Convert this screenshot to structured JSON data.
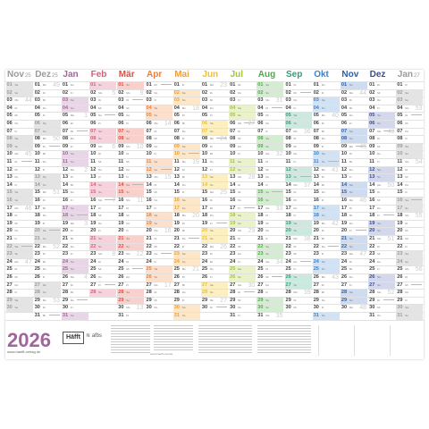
{
  "calendar": {
    "year_title": "2026",
    "brand": "Häfft",
    "brand_secondary": "≋ afbs",
    "website": "www.haefft-verlag.de",
    "website_small": "www.haefft.com/de",
    "weekdays": [
      "Mo",
      "Di",
      "Mi",
      "Do",
      "Fr",
      "Sa",
      "So"
    ],
    "months": [
      {
        "label": "Nov",
        "year": "25",
        "days": 30,
        "start": 5,
        "color": "#9b9b9b",
        "shade": "#e4e4e4",
        "kw": 44
      },
      {
        "label": "Dez",
        "year": "25",
        "days": 31,
        "start": 0,
        "color": "#9b9b9b",
        "shade": "#e4e4e4",
        "kw": 49
      },
      {
        "label": "Jan",
        "year": "",
        "days": 31,
        "start": 3,
        "color": "#a0669c",
        "shade": "#e8d6e6",
        "kw": 1
      },
      {
        "label": "Feb",
        "year": "",
        "days": 28,
        "start": 6,
        "color": "#d4607a",
        "shade": "#f6d3dc",
        "kw": 5
      },
      {
        "label": "Mär",
        "year": "",
        "days": 31,
        "start": 6,
        "color": "#e64a3f",
        "shade": "#fad0cc",
        "kw": 9
      },
      {
        "label": "Apr",
        "year": "",
        "days": 30,
        "start": 2,
        "color": "#ef7d3a",
        "shade": "#fde0cc",
        "kw": 14
      },
      {
        "label": "Mai",
        "year": "",
        "days": 31,
        "start": 4,
        "color": "#f29e38",
        "shade": "#fde7c6",
        "kw": 18
      },
      {
        "label": "Jun",
        "year": "",
        "days": 30,
        "start": 0,
        "color": "#f0bf2c",
        "shade": "#fcefc0",
        "kw": 23
      },
      {
        "label": "Jul",
        "year": "",
        "days": 31,
        "start": 2,
        "color": "#a5c33a",
        "shade": "#e9f2c8",
        "kw": 27
      },
      {
        "label": "Aug",
        "year": "",
        "days": 31,
        "start": 5,
        "color": "#4fac46",
        "shade": "#d4ecd1",
        "kw": 31
      },
      {
        "label": "Sep",
        "year": "",
        "days": 30,
        "start": 1,
        "color": "#2f9f7e",
        "shade": "#cce9df",
        "kw": 36
      },
      {
        "label": "Okt",
        "year": "",
        "days": 31,
        "start": 3,
        "color": "#3f82c6",
        "shade": "#d1e2f4",
        "kw": 40
      },
      {
        "label": "Nov",
        "year": "",
        "days": 30,
        "start": 6,
        "color": "#2c5fa8",
        "shade": "#cfdbef",
        "kw": 44
      },
      {
        "label": "Dez",
        "year": "",
        "days": 31,
        "start": 1,
        "color": "#3a4d94",
        "shade": "#d3d8ec",
        "kw": 49
      },
      {
        "label": "Jan",
        "year": "27",
        "days": 31,
        "start": 4,
        "color": "#9b9b9b",
        "shade": "#e4e4e4",
        "kw": 53
      }
    ]
  }
}
